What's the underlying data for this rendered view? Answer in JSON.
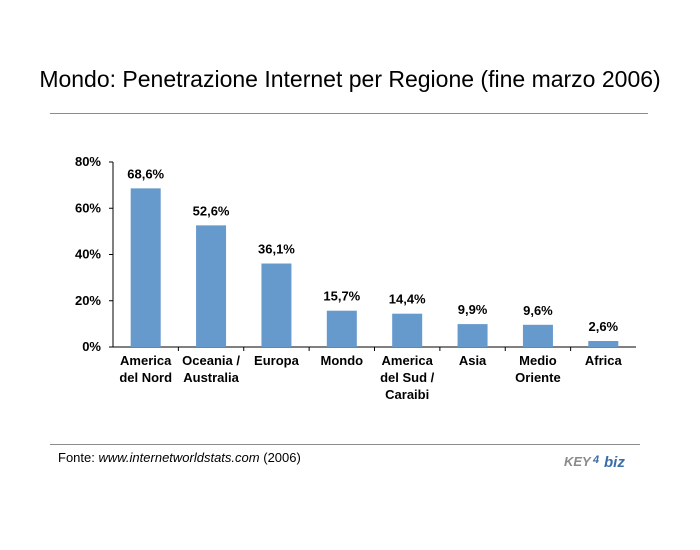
{
  "title": "Mondo: Penetrazione Internet per Regione (fine marzo 2006)",
  "source": {
    "prefix": "Fonte:",
    "url": "www.internetworldstats.com",
    "suffix": "(2006)"
  },
  "logo": {
    "text_left": "KEY",
    "text_mid": "4",
    "text_right": "biz"
  },
  "colors": {
    "bar": "#6699cc",
    "axis": "#000000",
    "rule": "#8c8c8c"
  },
  "chart_data": {
    "type": "bar",
    "categories": [
      [
        "America",
        "del Nord"
      ],
      [
        "Oceania /",
        "Australia"
      ],
      [
        "Europa"
      ],
      [
        "Mondo"
      ],
      [
        "America",
        "del Sud /",
        "Caraibi"
      ],
      [
        "Asia"
      ],
      [
        "Medio",
        "Oriente"
      ],
      [
        "Africa"
      ]
    ],
    "values": [
      68.6,
      52.6,
      36.1,
      15.7,
      14.4,
      9.9,
      9.6,
      2.6
    ],
    "data_labels": [
      "68,6%",
      "52,6%",
      "36,1%",
      "15,7%",
      "14,4%",
      "9,9%",
      "9,6%",
      "2,6%"
    ],
    "y_ticks": [
      0,
      20,
      40,
      60,
      80
    ],
    "y_tick_labels": [
      "0%",
      "20%",
      "40%",
      "60%",
      "80%"
    ],
    "ylim": [
      0,
      80
    ],
    "grid": false,
    "legend": "none"
  }
}
